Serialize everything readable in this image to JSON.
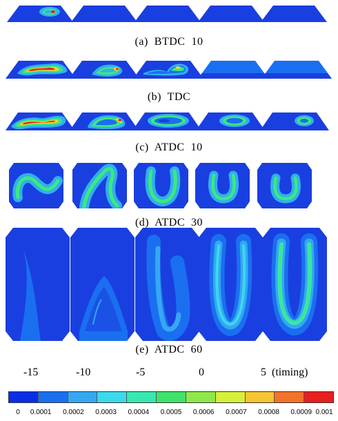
{
  "captions": {
    "a": "(a)  BTDC  10",
    "b": "(b)  TDC",
    "c": "(c)  ATDC  10",
    "d": "(d)  ATDC  30",
    "e": "(e)  ATDC  60"
  },
  "timing_labels": [
    "-15",
    "-10",
    "-5",
    "0",
    "5  (timing)"
  ],
  "legend": {
    "labels": [
      "0",
      "0.0001",
      "0.0002",
      "0.0003",
      "0.0004",
      "0.0005",
      "0.0006",
      "0.0007",
      "0.0008",
      "0.0009",
      "0.001"
    ],
    "colors": [
      "#0a2ee8",
      "#1a6ff0",
      "#35a8f2",
      "#3ad9ec",
      "#37e8b0",
      "#3fe26a",
      "#8ee84a",
      "#d8ef3a",
      "#f6c531",
      "#f2732a",
      "#e81f1f"
    ]
  },
  "colors": {
    "background": "#1a3fe0",
    "band_outer": "#30b0f0",
    "band_inner": "#3fe87a",
    "hot_mid": "#f2d52b",
    "hot_core": "#e81f1f"
  }
}
